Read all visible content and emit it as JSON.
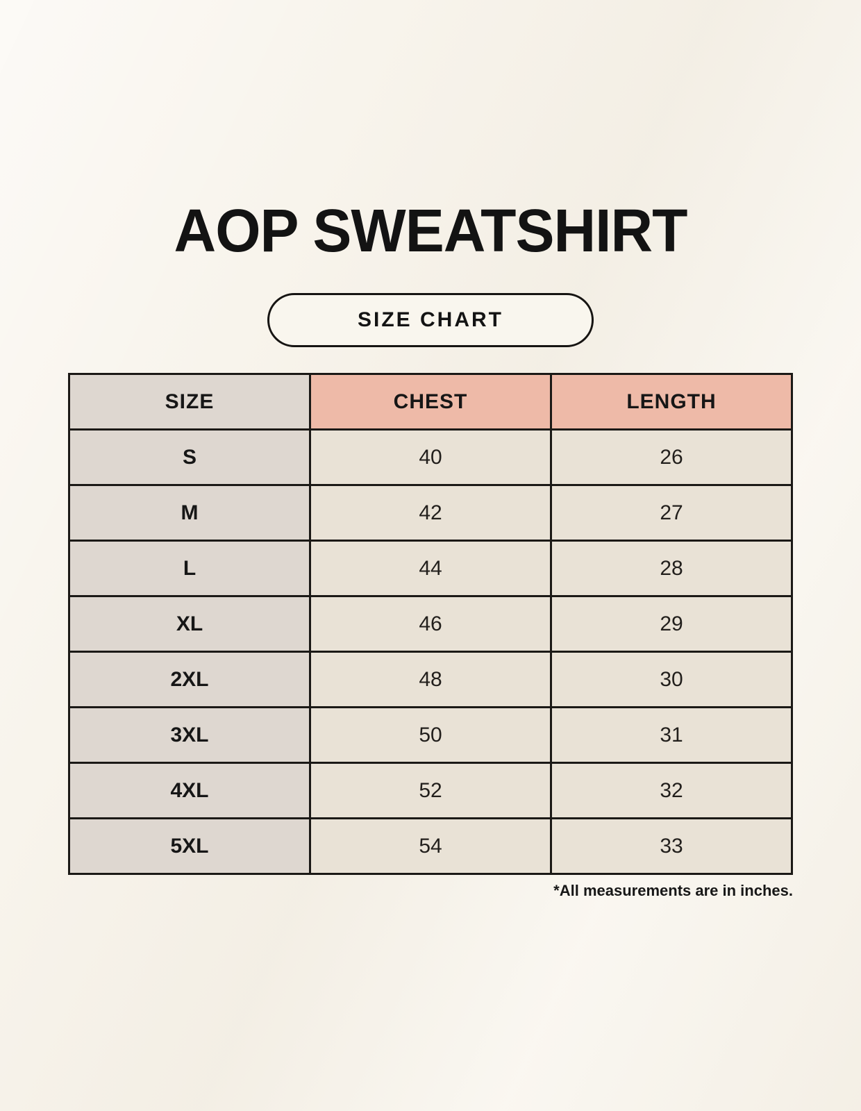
{
  "title": "AOP SWEATSHIRT",
  "badge_label": "SIZE CHART",
  "footnote": "*All measurements are in inches.",
  "colors": {
    "page_background": "#f8f4ec",
    "accent_header": "#eebaa8",
    "size_column": "#ded7d0",
    "data_cell": "#e9e2d6",
    "table_border": "#1b1916",
    "text": "#1a1a1a"
  },
  "chart_data": {
    "type": "table",
    "title": "AOP SWEATSHIRT SIZE CHART",
    "columns": [
      "SIZE",
      "CHEST",
      "LENGTH"
    ],
    "units": "inches",
    "rows": [
      {
        "size": "S",
        "chest": "40",
        "length": "26"
      },
      {
        "size": "M",
        "chest": "42",
        "length": "27"
      },
      {
        "size": "L",
        "chest": "44",
        "length": "28"
      },
      {
        "size": "XL",
        "chest": "46",
        "length": "29"
      },
      {
        "size": "2XL",
        "chest": "48",
        "length": "30"
      },
      {
        "size": "3XL",
        "chest": "50",
        "length": "31"
      },
      {
        "size": "4XL",
        "chest": "52",
        "length": "32"
      },
      {
        "size": "5XL",
        "chest": "54",
        "length": "33"
      }
    ]
  }
}
